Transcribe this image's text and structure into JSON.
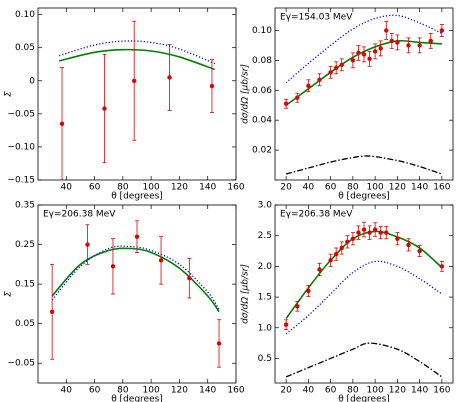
{
  "chart_data": [
    {
      "type": "scatter",
      "ylabel": "Σ",
      "xlabel": "θ [degrees]",
      "xlim": [
        20,
        160
      ],
      "xticks": [
        40,
        60,
        80,
        100,
        120,
        140,
        160
      ],
      "ylim": [
        -0.15,
        0.11
      ],
      "yticks": [
        {
          "value": -0.15,
          "label": "−0.15"
        },
        {
          "value": -0.1,
          "label": "−0.10"
        },
        {
          "value": -0.05,
          "label": "−0.05"
        },
        0,
        0.05,
        {
          "value": 0.1,
          "label": "0.10"
        }
      ],
      "series": [
        {
          "color": "#008000",
          "style": "solid",
          "x": [
            35,
            60,
            80,
            100,
            120,
            145
          ],
          "values": [
            0.03,
            0.043,
            0.047,
            0.045,
            0.036,
            0.017
          ]
        },
        {
          "color": "#0000ff",
          "style": "dotted",
          "x": [
            35,
            60,
            80,
            100,
            120,
            145
          ],
          "values": [
            0.038,
            0.054,
            0.06,
            0.058,
            0.048,
            0.026
          ]
        },
        {
          "color": "#e00000",
          "style": "points",
          "x": [
            37,
            67,
            88,
            113,
            143
          ],
          "values": [
            -0.065,
            -0.042,
            0.0,
            0.005,
            -0.008
          ],
          "errors": [
            0.085,
            0.082,
            0.09,
            0.05,
            0.04
          ]
        }
      ]
    },
    {
      "type": "scatter",
      "ylabel": "dσ/dΩ [μb/sr]",
      "xlabel": "θ [degrees]",
      "annotation": "Eγ=154.03 MeV",
      "xlim": [
        10,
        170
      ],
      "xticks": [
        20,
        40,
        60,
        80,
        100,
        120,
        140,
        160
      ],
      "ylim": [
        0,
        0.115
      ],
      "yticks": [
        0.02,
        0.04,
        0.06,
        0.08,
        {
          "value": 0.1,
          "label": "0.10"
        }
      ],
      "series": [
        {
          "color": "#008000",
          "style": "solid",
          "x": [
            20,
            40,
            60,
            80,
            100,
            120,
            140,
            160
          ],
          "values": [
            0.05,
            0.061,
            0.072,
            0.082,
            0.089,
            0.093,
            0.092,
            0.091
          ]
        },
        {
          "color": "#0000ff",
          "style": "dotted",
          "x": [
            20,
            40,
            60,
            80,
            100,
            120,
            140,
            160
          ],
          "values": [
            0.065,
            0.078,
            0.09,
            0.101,
            0.108,
            0.11,
            0.105,
            0.098
          ]
        },
        {
          "color": "#000000",
          "style": "dashdot",
          "x": [
            20,
            40,
            60,
            80,
            95,
            120,
            140,
            160
          ],
          "values": [
            0.004,
            0.008,
            0.012,
            0.015,
            0.016,
            0.013,
            0.009,
            0.004
          ]
        },
        {
          "color": "#e00000",
          "style": "points",
          "x": [
            20,
            30,
            40,
            50,
            60,
            65,
            70,
            80,
            85,
            90,
            95,
            100,
            105,
            110,
            115,
            120,
            130,
            140,
            150,
            160
          ],
          "values": [
            0.051,
            0.055,
            0.063,
            0.067,
            0.072,
            0.075,
            0.077,
            0.08,
            0.085,
            0.084,
            0.081,
            0.086,
            0.088,
            0.1,
            0.093,
            0.092,
            0.09,
            0.09,
            0.093,
            0.1
          ],
          "errors": [
            0.003,
            0.003,
            0.004,
            0.004,
            0.004,
            0.004,
            0.004,
            0.005,
            0.005,
            0.005,
            0.005,
            0.005,
            0.005,
            0.006,
            0.005,
            0.005,
            0.005,
            0.005,
            0.005,
            0.004
          ]
        }
      ]
    },
    {
      "type": "scatter",
      "ylabel": "Σ",
      "xlabel": "θ [degrees]",
      "annotation": "Eγ=206.38 MeV",
      "xlim": [
        20,
        160
      ],
      "xticks": [
        40,
        60,
        80,
        100,
        120,
        140,
        160
      ],
      "ylim": [
        -0.1,
        0.35
      ],
      "yticks": [
        {
          "value": -0.05,
          "label": "−0.05"
        },
        0.05,
        0.15,
        0.25,
        0.35
      ],
      "series": [
        {
          "color": "#008000",
          "style": "solid",
          "x": [
            30,
            50,
            70,
            85,
            100,
            120,
            140,
            148
          ],
          "values": [
            0.12,
            0.2,
            0.235,
            0.24,
            0.23,
            0.19,
            0.12,
            0.08
          ]
        },
        {
          "color": "#0000ff",
          "style": "dotted",
          "x": [
            30,
            50,
            70,
            85,
            100,
            120,
            140,
            148
          ],
          "values": [
            0.11,
            0.195,
            0.24,
            0.245,
            0.235,
            0.2,
            0.13,
            0.085
          ]
        },
        {
          "color": "#e00000",
          "style": "points",
          "x": [
            30,
            55,
            73,
            90,
            107,
            127,
            148
          ],
          "values": [
            0.08,
            0.25,
            0.195,
            0.27,
            0.21,
            0.165,
            0.0
          ],
          "errors": [
            0.12,
            0.05,
            0.07,
            0.04,
            0.06,
            0.05,
            0.06
          ]
        }
      ]
    },
    {
      "type": "scatter",
      "ylabel": "dσ/dΩ [μb/sr]",
      "xlabel": "θ [degrees]",
      "annotation": "Eγ=206.38 MeV",
      "xlim": [
        10,
        170
      ],
      "xticks": [
        20,
        40,
        60,
        80,
        100,
        120,
        140,
        160
      ],
      "ylim": [
        0.1,
        3.0
      ],
      "yticks": [
        0.5,
        {
          "value": 1,
          "label": "1.0"
        },
        1.5,
        {
          "value": 2,
          "label": "2.0"
        },
        2.5,
        {
          "value": 3,
          "label": "3.0"
        }
      ],
      "series": [
        {
          "color": "#008000",
          "style": "solid",
          "x": [
            20,
            40,
            60,
            80,
            100,
            120,
            140,
            160
          ],
          "values": [
            1.15,
            1.65,
            2.1,
            2.45,
            2.57,
            2.48,
            2.3,
            1.98
          ]
        },
        {
          "color": "#0000ff",
          "style": "dotted",
          "x": [
            20,
            40,
            60,
            80,
            100,
            120,
            140,
            160
          ],
          "values": [
            0.9,
            1.2,
            1.55,
            1.9,
            2.08,
            2.0,
            1.8,
            1.55
          ]
        },
        {
          "color": "#000000",
          "style": "dashdot",
          "x": [
            20,
            40,
            60,
            80,
            95,
            120,
            140,
            160
          ],
          "values": [
            0.2,
            0.35,
            0.5,
            0.65,
            0.75,
            0.65,
            0.45,
            0.2
          ]
        },
        {
          "color": "#e00000",
          "style": "points",
          "x": [
            20,
            30,
            40,
            50,
            60,
            65,
            70,
            75,
            80,
            85,
            90,
            95,
            100,
            105,
            110,
            120,
            130,
            140,
            160
          ],
          "values": [
            1.05,
            1.35,
            1.6,
            1.95,
            2.1,
            2.2,
            2.3,
            2.4,
            2.45,
            2.55,
            2.6,
            2.55,
            2.6,
            2.55,
            2.55,
            2.45,
            2.35,
            2.25,
            2.0
          ],
          "errors": [
            0.08,
            0.08,
            0.09,
            0.1,
            0.1,
            0.1,
            0.1,
            0.1,
            0.1,
            0.11,
            0.12,
            0.11,
            0.11,
            0.1,
            0.1,
            0.1,
            0.1,
            0.09,
            0.08
          ]
        }
      ]
    }
  ]
}
